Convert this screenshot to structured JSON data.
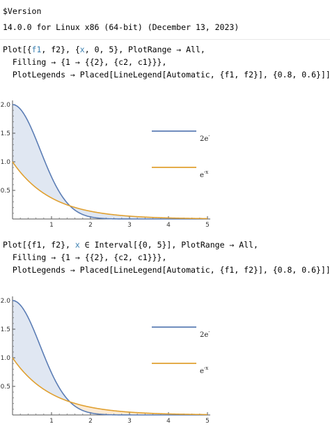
{
  "version_cell": {
    "input": "$Version",
    "output": "14.0.0 for Linux x86 (64-bit) (December 13, 2023)"
  },
  "cell1": {
    "line1_pre": "Plot[{",
    "line1_f1": "f1",
    "line1_mid": ", f2}, {",
    "line1_x": "x",
    "line1_post": ", 0, 5}, PlotRange → All,",
    "line2": "  Filling → {1 → {{2}, {c2, c1}}},",
    "line3": "  PlotLegends → Placed[LineLegend[Automatic, {f1, f2}], {0.8, 0.6}]]"
  },
  "cell2": {
    "line1_pre": "Plot[{f1, f2}, ",
    "line1_x": "x",
    "line1_post": " ∈ Interval[{0, 5}], PlotRange → All,",
    "line2": "  Filling → {1 → {{2}, {c2, c1}}},",
    "line3": "  PlotLegends → Placed[LineLegend[Automatic, {f1, f2}], {0.8, 0.6}]]"
  },
  "chart_data": [
    {
      "type": "line",
      "x_range": [
        0,
        5
      ],
      "ylim": [
        0,
        2
      ],
      "x_ticks": [
        "1",
        "2",
        "3",
        "4",
        "5"
      ],
      "y_ticks": [
        "0.5",
        "1.0",
        "1.5",
        "2.0"
      ],
      "series": [
        {
          "name": "2e^-x²",
          "legend_base": "2e",
          "legend_sup": "-",
          "function": "2*exp(-x^2)",
          "color": "#5B7DB5"
        },
        {
          "name": "e^-x",
          "legend_base": "e",
          "legend_sup": "-x",
          "function": "exp(-x)",
          "color": "#E0A030"
        }
      ],
      "filling": {
        "fill_above_color": "#dbe3f0",
        "fill_below_color": "#dbe3f0"
      }
    },
    {
      "type": "line",
      "x_range": [
        0,
        5
      ],
      "ylim": [
        0,
        2
      ],
      "x_ticks": [
        "1",
        "2",
        "3",
        "4",
        "5"
      ],
      "y_ticks": [
        "0.5",
        "1.0",
        "1.5",
        "2.0"
      ],
      "series": [
        {
          "name": "2e^-x²",
          "legend_base": "2e",
          "legend_sup": "-",
          "function": "2*exp(-x^2)",
          "color": "#5B7DB5"
        },
        {
          "name": "e^-x",
          "legend_base": "e",
          "legend_sup": "-x",
          "function": "exp(-x)",
          "color": "#E0A030"
        }
      ],
      "filling": {
        "fill_above_color": "#dbe3f0",
        "fill_below_color": "#fbe6cc"
      }
    }
  ]
}
